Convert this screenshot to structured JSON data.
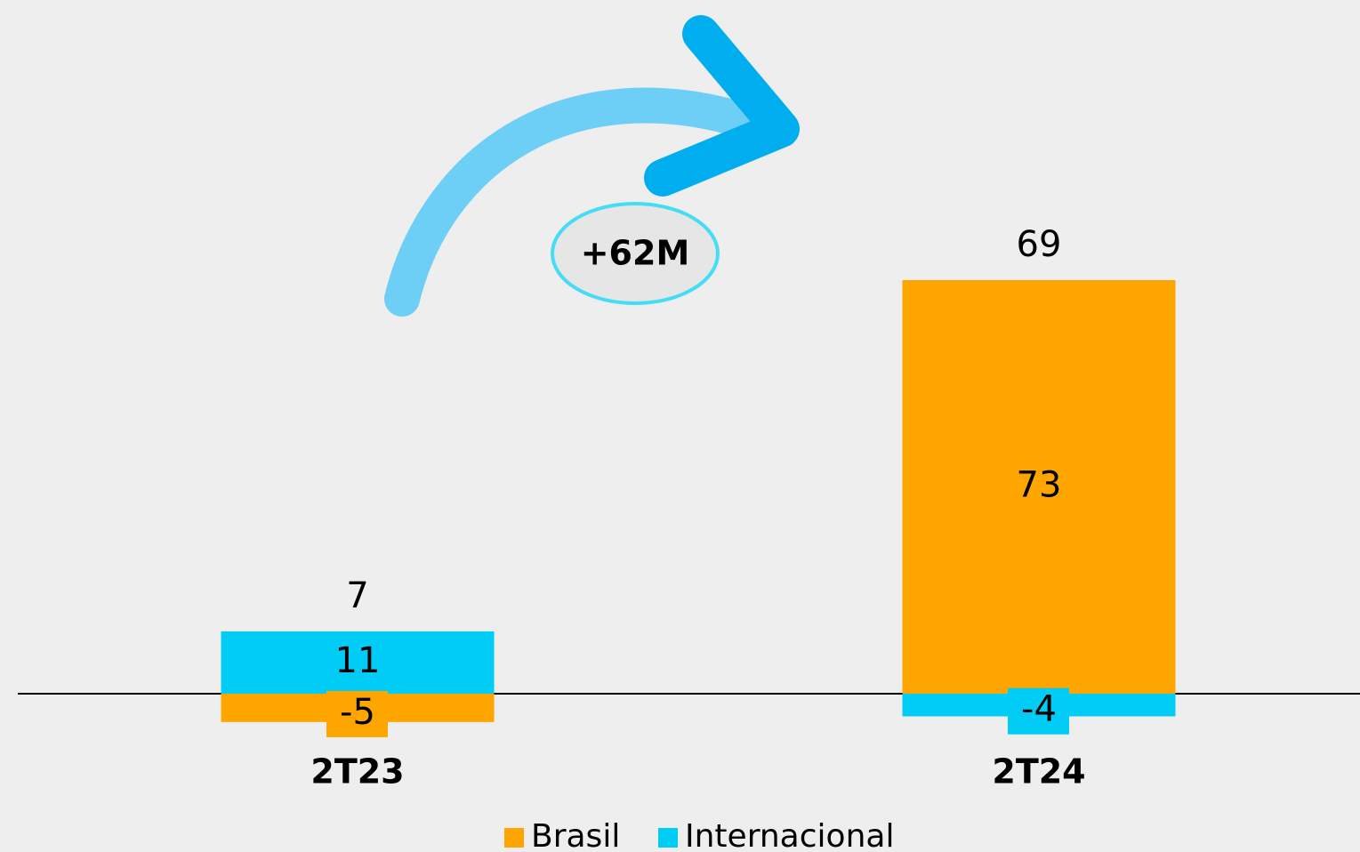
{
  "chart_data": {
    "type": "bar",
    "stacked": true,
    "categories": [
      "2T23",
      "2T24"
    ],
    "series": [
      {
        "name": "Brasil",
        "color": "#ffa500",
        "values": [
          -5,
          73
        ]
      },
      {
        "name": "Internacional",
        "color": "#00ccf5",
        "values": [
          11,
          -4
        ]
      }
    ],
    "totals": [
      7,
      69
    ],
    "annotation": "+62M"
  }
}
